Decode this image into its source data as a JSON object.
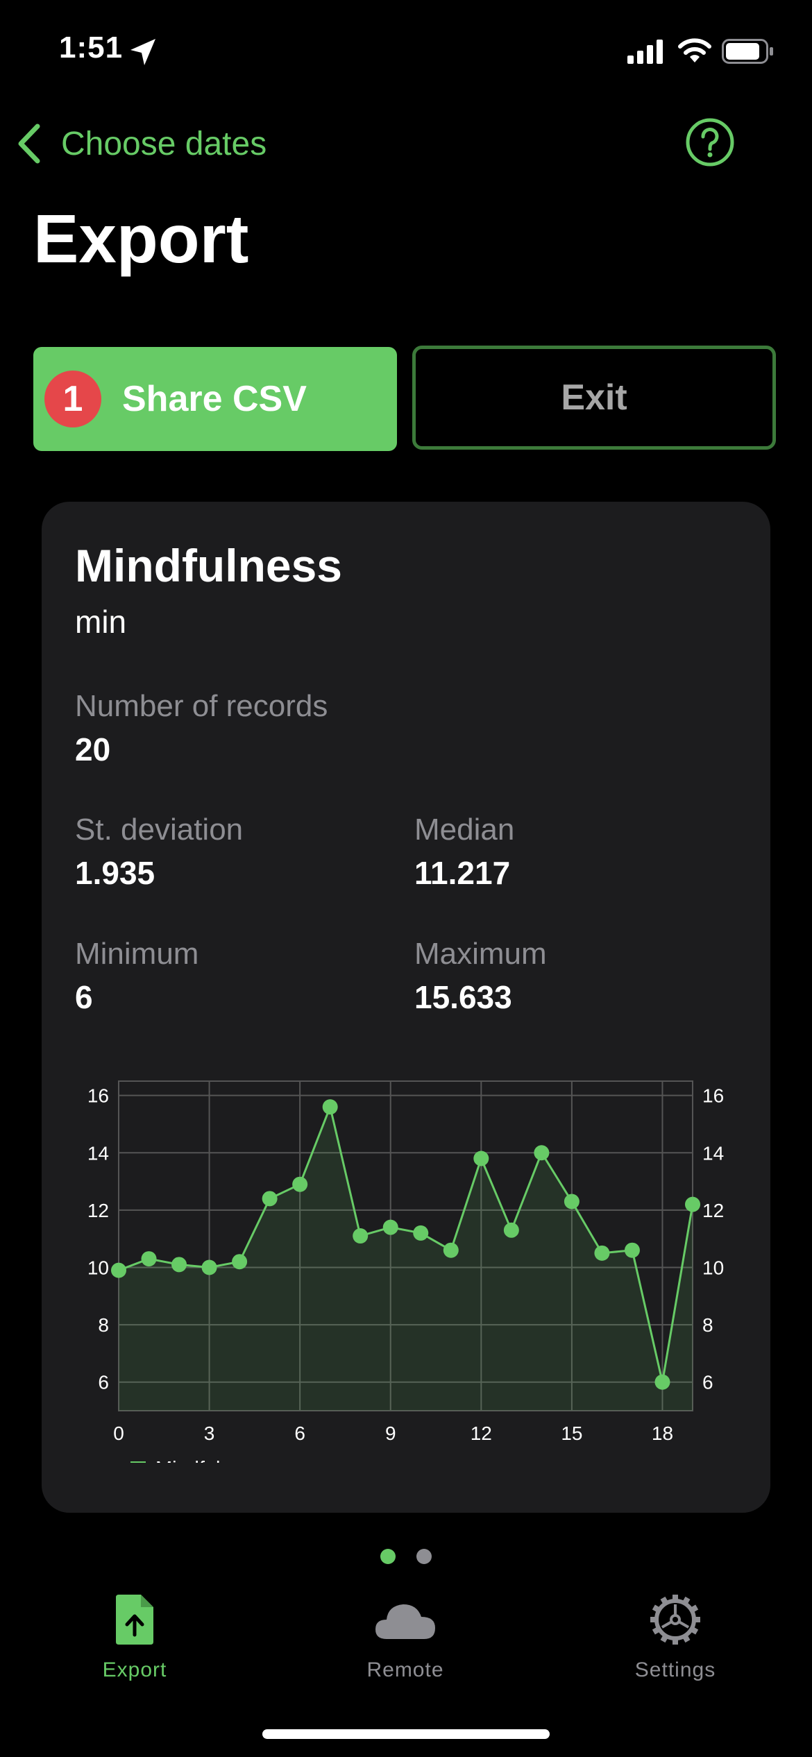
{
  "status_bar": {
    "time": "1:51"
  },
  "nav": {
    "back_label": "Choose dates",
    "title": "Export"
  },
  "actions": {
    "badge_count": "1",
    "share_label": "Share CSV",
    "exit_label": "Exit"
  },
  "card": {
    "title": "Mindfulness",
    "unit": "min",
    "stats": {
      "records_label": "Number of records",
      "records_value": "20",
      "stdev_label": "St. deviation",
      "stdev_value": "1.935",
      "median_label": "Median",
      "median_value": "11.217",
      "min_label": "Minimum",
      "min_value": "6",
      "max_label": "Maximum",
      "max_value": "15.633"
    }
  },
  "chart_data": {
    "type": "line",
    "title": "",
    "xlabel": "",
    "ylabel": "",
    "x": [
      0,
      1,
      2,
      3,
      4,
      5,
      6,
      7,
      8,
      9,
      10,
      11,
      12,
      13,
      14,
      15,
      16,
      17,
      18,
      19
    ],
    "series": [
      {
        "name": "Mindfulness",
        "values": [
          9.9,
          10.3,
          10.1,
          10.0,
          10.2,
          12.4,
          12.9,
          15.6,
          11.1,
          11.4,
          11.2,
          10.6,
          13.8,
          11.3,
          14.0,
          12.3,
          10.5,
          10.6,
          6.0,
          12.2
        ]
      }
    ],
    "xticks": [
      "0",
      "3",
      "6",
      "9",
      "12",
      "15",
      "18"
    ],
    "yticks": [
      "6",
      "8",
      "10",
      "12",
      "14",
      "16"
    ],
    "xlim": [
      0,
      19
    ],
    "ylim": [
      5,
      16.5
    ],
    "grid": true,
    "legend": "bottom-left",
    "color": "#67cb66"
  },
  "pager": {
    "pages": 2,
    "current": 1
  },
  "tabs": [
    {
      "label": "Export"
    },
    {
      "label": "Remote"
    },
    {
      "label": "Settings"
    }
  ],
  "colors": {
    "accent": "#67cb66",
    "badge": "#e5474a",
    "card": "#1c1c1e"
  }
}
